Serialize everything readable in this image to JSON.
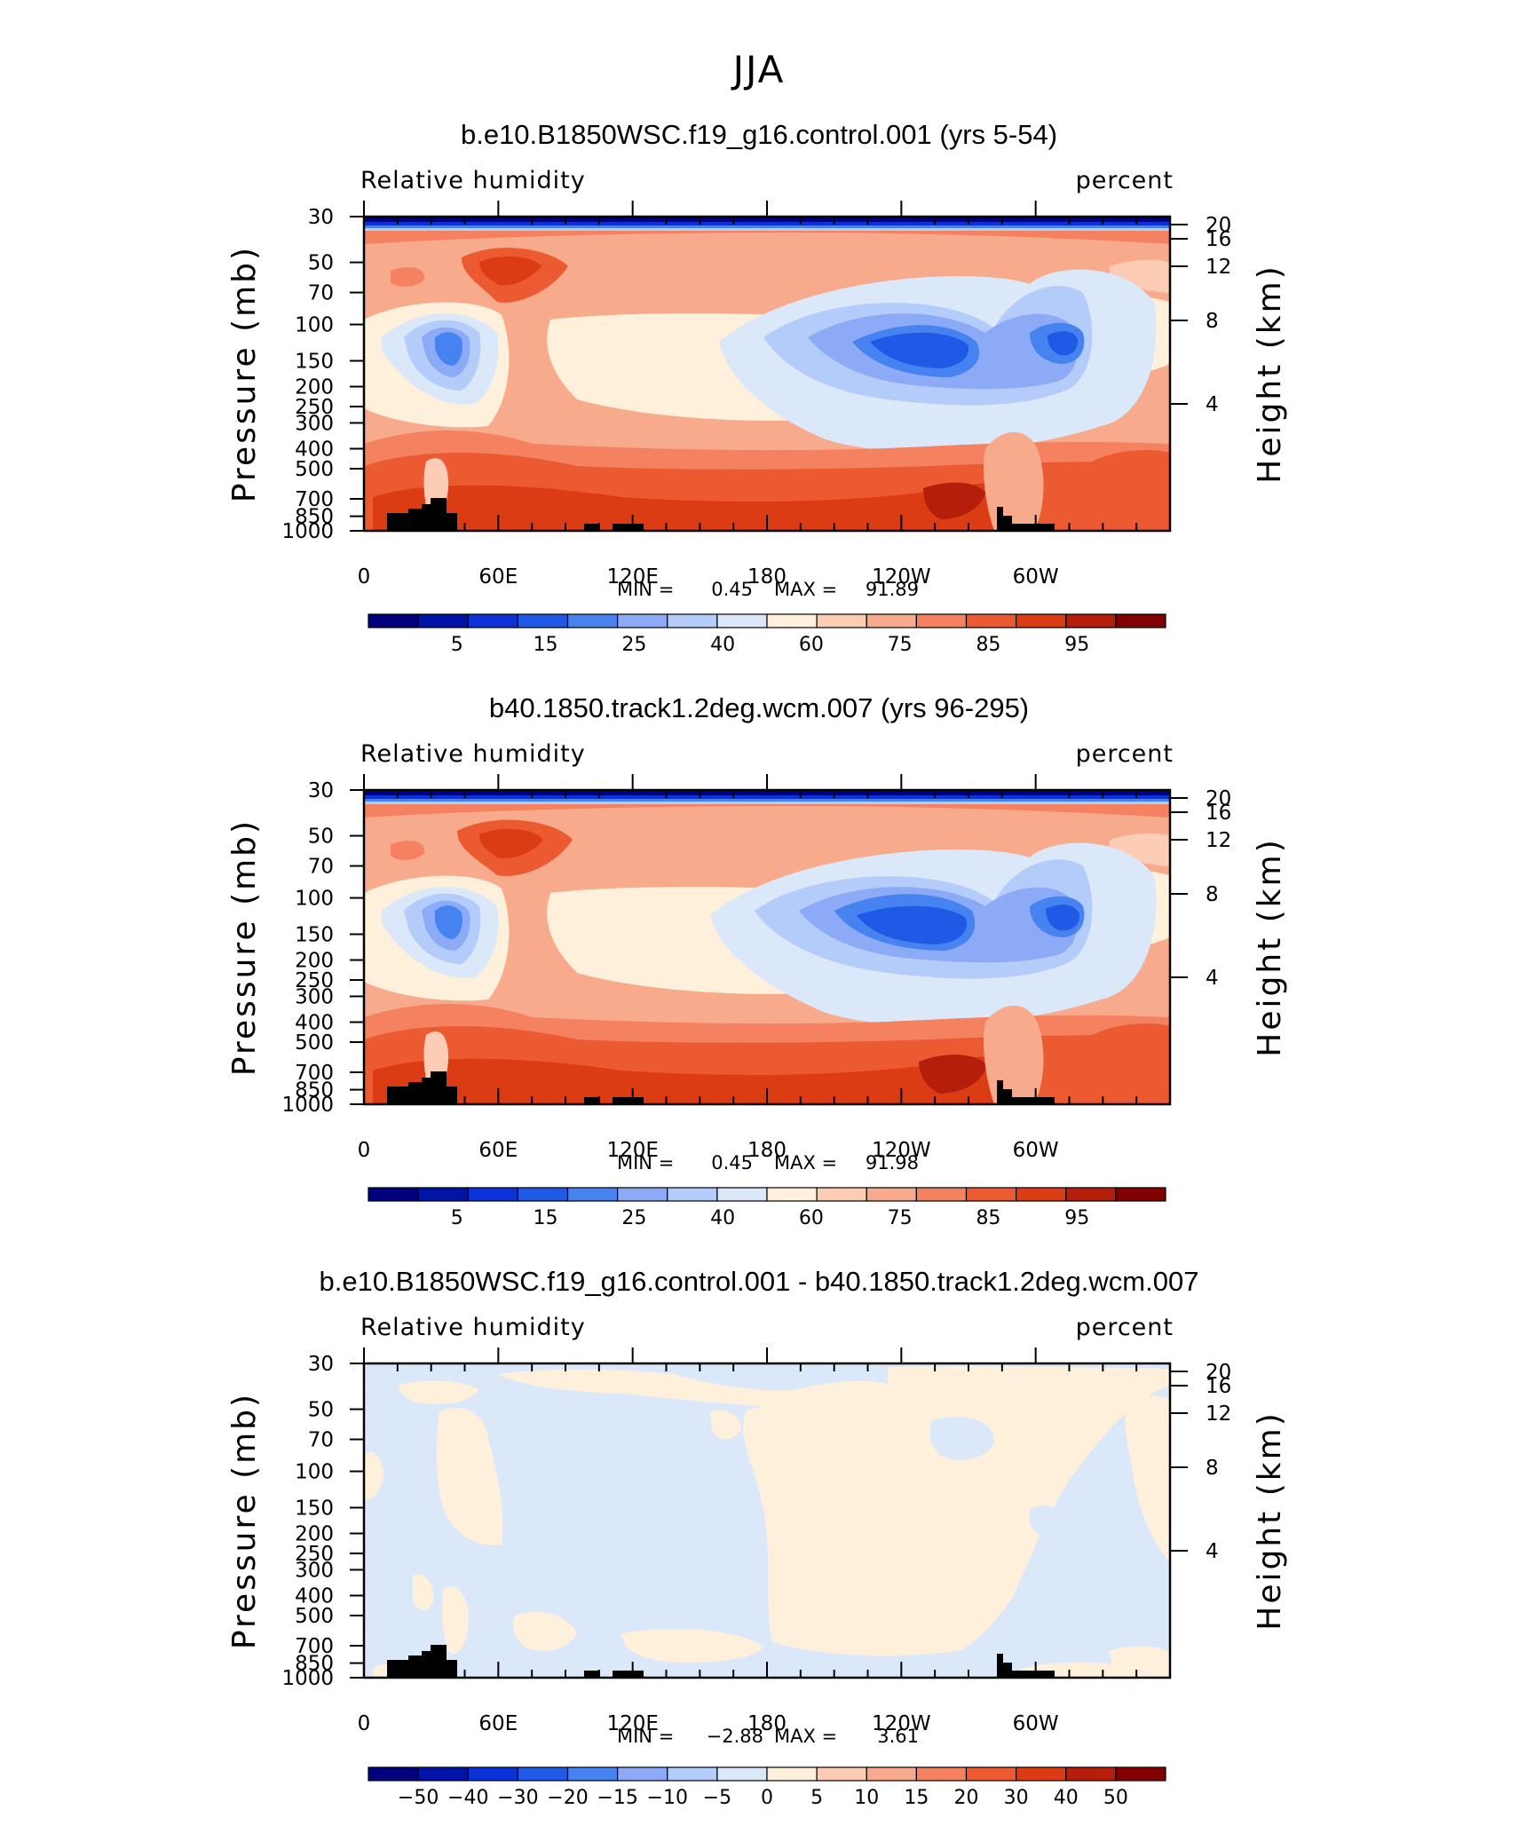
{
  "figure_title": "JJA",
  "colors": {
    "rh_levels": [
      "#00007f",
      "#0014a8",
      "#0a32d8",
      "#1e5ae6",
      "#4682f0",
      "#8caaf5",
      "#b4ccfa",
      "#dae8fa",
      "#fff0dc",
      "#fccdb4",
      "#f8aa8c",
      "#f48260",
      "#ec5a32",
      "#dc3c14",
      "#b41e0a",
      "#820000"
    ],
    "land": "#000000"
  },
  "chart_data": [
    {
      "type": "heatmap",
      "title": "b.e10.B1850WSC.f19_g16.control.001 (yrs 5-54)",
      "left_label": "Relative humidity",
      "right_label": "percent",
      "xlabel": "",
      "ylabel": "Pressure (mb)",
      "ylabel_right": "Height (km)",
      "x_ticks": [
        "0",
        "60E",
        "120E",
        "180",
        "120W",
        "60W"
      ],
      "y_ticks": [
        "30",
        "50",
        "70",
        "100",
        "150",
        "200",
        "250",
        "300",
        "400",
        "500",
        "700",
        "850",
        "1000"
      ],
      "y_right_ticks": [
        "20",
        "16",
        "12",
        "8",
        "4"
      ],
      "min_label": "MIN =",
      "min_value": "0.45",
      "max_label": "MAX =",
      "max_value": "91.89",
      "colorbar_labels": [
        "5",
        "15",
        "25",
        "40",
        "60",
        "75",
        "85",
        "95"
      ]
    },
    {
      "type": "heatmap",
      "title": "b40.1850.track1.2deg.wcm.007 (yrs 96-295)",
      "left_label": "Relative humidity",
      "right_label": "percent",
      "xlabel": "",
      "ylabel": "Pressure (mb)",
      "ylabel_right": "Height (km)",
      "x_ticks": [
        "0",
        "60E",
        "120E",
        "180",
        "120W",
        "60W"
      ],
      "y_ticks": [
        "30",
        "50",
        "70",
        "100",
        "150",
        "200",
        "250",
        "300",
        "400",
        "500",
        "700",
        "850",
        "1000"
      ],
      "y_right_ticks": [
        "20",
        "16",
        "12",
        "8",
        "4"
      ],
      "min_label": "MIN =",
      "min_value": "0.45",
      "max_label": "MAX =",
      "max_value": "91.98",
      "colorbar_labels": [
        "5",
        "15",
        "25",
        "40",
        "60",
        "75",
        "85",
        "95"
      ]
    },
    {
      "type": "heatmap",
      "title": "b.e10.B1850WSC.f19_g16.control.001 - b40.1850.track1.2deg.wcm.007",
      "left_label": "Relative humidity",
      "right_label": "percent",
      "xlabel": "",
      "ylabel": "Pressure (mb)",
      "ylabel_right": "Height (km)",
      "x_ticks": [
        "0",
        "60E",
        "120E",
        "180",
        "120W",
        "60W"
      ],
      "y_ticks": [
        "30",
        "50",
        "70",
        "100",
        "150",
        "200",
        "250",
        "300",
        "400",
        "500",
        "700",
        "850",
        "1000"
      ],
      "y_right_ticks": [
        "20",
        "16",
        "12",
        "8",
        "4"
      ],
      "min_label": "MIN =",
      "min_value": "−2.88",
      "max_label": "MAX =",
      "max_value": "3.61",
      "colorbar_labels": [
        "−50",
        "−40",
        "−30",
        "−20",
        "−15",
        "−10",
        "−5",
        "0",
        "5",
        "10",
        "15",
        "20",
        "30",
        "40",
        "50"
      ]
    }
  ]
}
